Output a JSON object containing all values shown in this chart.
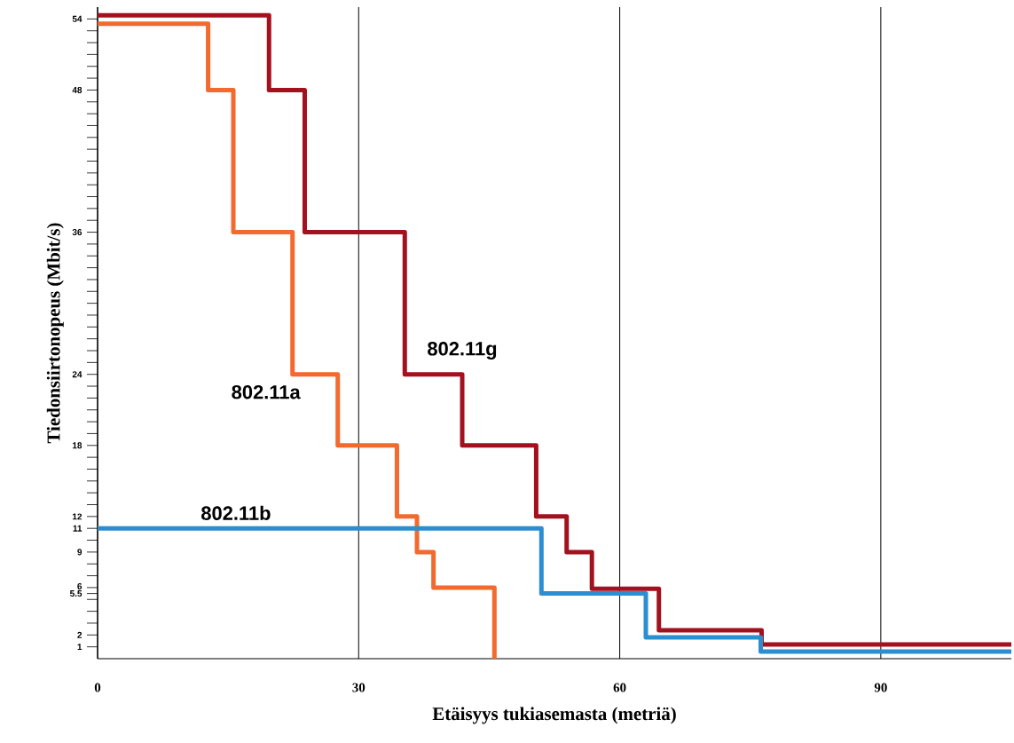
{
  "chart_data": {
    "type": "step",
    "xlabel": "Etäisyys tukiasemasta (metriä)",
    "ylabel": "Tiedonsiirtonopeus (Mbit/s)",
    "xlim": [
      0,
      105
    ],
    "ylim": [
      0,
      55
    ],
    "xticks": [
      0,
      30,
      60,
      90
    ],
    "yticks": [
      {
        "value": 1,
        "label": "1"
      },
      {
        "value": 2,
        "label": "2"
      },
      {
        "value": 3,
        "label": null
      },
      {
        "value": 4,
        "label": null
      },
      {
        "value": 5,
        "label": null
      },
      {
        "value": 5.5,
        "label": "5.5"
      },
      {
        "value": 6,
        "label": "6"
      },
      {
        "value": 7,
        "label": null
      },
      {
        "value": 8,
        "label": null
      },
      {
        "value": 9,
        "label": "9"
      },
      {
        "value": 10,
        "label": null
      },
      {
        "value": 11,
        "label": "11"
      },
      {
        "value": 12,
        "label": "12"
      },
      {
        "value": 13,
        "label": null
      },
      {
        "value": 14,
        "label": null
      },
      {
        "value": 15,
        "label": null
      },
      {
        "value": 16,
        "label": null
      },
      {
        "value": 17,
        "label": null
      },
      {
        "value": 18,
        "label": "18"
      },
      {
        "value": 19,
        "label": null
      },
      {
        "value": 20,
        "label": null
      },
      {
        "value": 21,
        "label": null
      },
      {
        "value": 22,
        "label": null
      },
      {
        "value": 23,
        "label": null
      },
      {
        "value": 24,
        "label": "24"
      },
      {
        "value": 25,
        "label": null
      },
      {
        "value": 26,
        "label": null
      },
      {
        "value": 27,
        "label": null
      },
      {
        "value": 28,
        "label": null
      },
      {
        "value": 29,
        "label": null
      },
      {
        "value": 30,
        "label": null
      },
      {
        "value": 31,
        "label": null
      },
      {
        "value": 32,
        "label": null
      },
      {
        "value": 33,
        "label": null
      },
      {
        "value": 34,
        "label": null
      },
      {
        "value": 35,
        "label": null
      },
      {
        "value": 36,
        "label": "36"
      },
      {
        "value": 37,
        "label": null
      },
      {
        "value": 38,
        "label": null
      },
      {
        "value": 39,
        "label": null
      },
      {
        "value": 40,
        "label": null
      },
      {
        "value": 41,
        "label": null
      },
      {
        "value": 42,
        "label": null
      },
      {
        "value": 43,
        "label": null
      },
      {
        "value": 44,
        "label": null
      },
      {
        "value": 45,
        "label": null
      },
      {
        "value": 46,
        "label": null
      },
      {
        "value": 47,
        "label": null
      },
      {
        "value": 48,
        "label": "48"
      },
      {
        "value": 49,
        "label": null
      },
      {
        "value": 50,
        "label": null
      },
      {
        "value": 51,
        "label": null
      },
      {
        "value": 52,
        "label": null
      },
      {
        "value": 53,
        "label": null
      },
      {
        "value": 54,
        "label": "54"
      }
    ],
    "grid": "x",
    "legend": false,
    "series": [
      {
        "name": "802.11g",
        "color": "#a3111f",
        "x": [
          0,
          19.7,
          23.8,
          35.3,
          41.9,
          50.4,
          53.9,
          56.8,
          64.5,
          76.3,
          105
        ],
        "values": [
          54.3,
          48,
          36,
          24,
          18,
          12,
          9,
          5.9,
          2.4,
          1.2,
          1.2
        ]
      },
      {
        "name": "802.11a",
        "color": "#f26a2e",
        "x": [
          0,
          12.7,
          15.6,
          22.4,
          27.6,
          34.4,
          36.7,
          38.6,
          45.6
        ],
        "values": [
          53.6,
          48,
          36,
          24,
          18,
          12,
          9,
          6,
          0
        ]
      },
      {
        "name": "802.11b",
        "color": "#2b8ed0",
        "x": [
          0,
          51.0,
          63.0,
          76.2,
          105
        ],
        "values": [
          11,
          5.5,
          1.8,
          0.6,
          0.6
        ]
      }
    ]
  }
}
